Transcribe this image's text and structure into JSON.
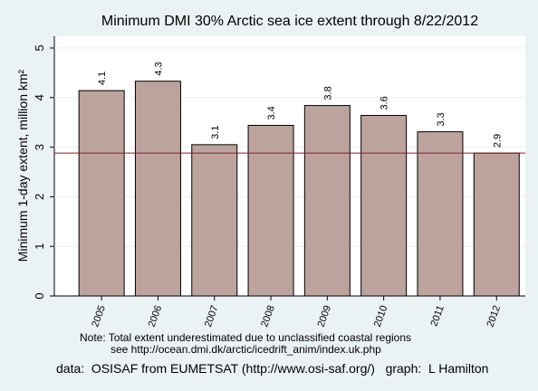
{
  "chart_data": {
    "type": "bar",
    "title": "Minimum DMI 30% Arctic sea ice extent through 8/22/2012",
    "y_label": "Minimum 1-day extent, million km²",
    "categories": [
      "2005",
      "2006",
      "2007",
      "2008",
      "2009",
      "2010",
      "2011",
      "2012"
    ],
    "values": [
      4.14,
      4.33,
      3.05,
      3.44,
      3.84,
      3.64,
      3.31,
      2.88
    ],
    "value_labels": [
      "4.1",
      "4.3",
      "3.1",
      "3.4",
      "3.8",
      "3.6",
      "3.3",
      "2.9"
    ],
    "color": "#bca39e",
    "ylim": [
      0,
      5
    ],
    "yticks": [
      0,
      1,
      2,
      3,
      4,
      5
    ],
    "grid": true,
    "notes": [
      "Note:  Total extent underestimated due to unclassified coastal regions",
      "see http://ocean.dmi.dk/arctic/icedrift_anim/index.uk.php"
    ],
    "source": "data:  OSISAF from EUMETSAT (http://www.osi-saf.org/)   graph:  L Hamilton"
  }
}
